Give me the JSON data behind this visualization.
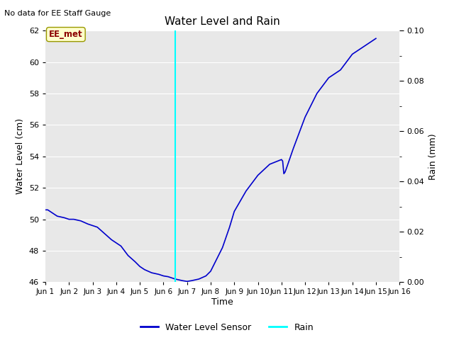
{
  "title": "Water Level and Rain",
  "subtitle": "No data for EE Staff Gauge",
  "xlabel": "Time",
  "ylabel_left": "Water Level (cm)",
  "ylabel_right": "Rain (mm)",
  "ylim_left": [
    46,
    62
  ],
  "ylim_right": [
    0.0,
    0.1
  ],
  "yticks_left": [
    46,
    48,
    50,
    52,
    54,
    56,
    58,
    60,
    62
  ],
  "yticks_right": [
    0.0,
    0.02,
    0.04,
    0.06,
    0.08,
    0.1
  ],
  "xtick_labels": [
    "Jun 1",
    "Jun 2",
    "Jun 3",
    "Jun 4",
    "Jun 5",
    "Jun 6",
    "Jun 7",
    "Jun 8",
    "Jun 9",
    "Jun 10",
    "Jun 11",
    "Jun 12",
    "Jun 13",
    "Jun 14",
    "Jun 15",
    "Jun 16"
  ],
  "water_level_color": "#0000cc",
  "rain_color": "#00ffff",
  "vertical_line_x": 6.5,
  "annotation_text": "EE_met",
  "bg_color": "#e8e8e8",
  "water_x": [
    1,
    1.1,
    1.2,
    1.3,
    1.5,
    1.8,
    2.0,
    2.2,
    2.5,
    2.8,
    3.0,
    3.2,
    3.5,
    3.8,
    4.0,
    4.2,
    4.5,
    4.8,
    5.0,
    5.2,
    5.5,
    5.8,
    6.0,
    6.2,
    6.5,
    6.8,
    7.0,
    7.2,
    7.5,
    7.8,
    8.0,
    8.2,
    8.5,
    8.8,
    9.0,
    9.5,
    10.0,
    10.5,
    11.0,
    11.05,
    11.1,
    11.15,
    11.2,
    11.5,
    12.0,
    12.5,
    13.0,
    13.5,
    14.0,
    14.5,
    15.0
  ],
  "water_y": [
    50.6,
    50.6,
    50.5,
    50.4,
    50.2,
    50.1,
    50.0,
    50.0,
    49.9,
    49.7,
    49.6,
    49.5,
    49.1,
    48.7,
    48.5,
    48.3,
    47.7,
    47.3,
    47.0,
    46.8,
    46.6,
    46.5,
    46.4,
    46.35,
    46.2,
    46.1,
    46.05,
    46.1,
    46.2,
    46.4,
    46.7,
    47.3,
    48.2,
    49.5,
    50.5,
    51.8,
    52.8,
    53.5,
    53.8,
    53.7,
    52.9,
    53.0,
    53.2,
    54.5,
    56.5,
    58.0,
    59.0,
    59.5,
    60.5,
    61.0,
    61.5
  ]
}
